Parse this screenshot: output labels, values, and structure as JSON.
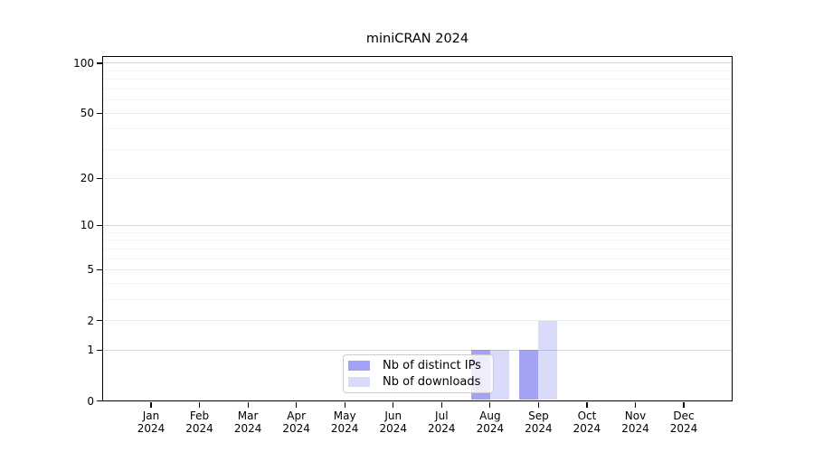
{
  "chart_data": {
    "type": "bar",
    "title": "miniCRAN 2024",
    "categories": [
      "Jan",
      "Feb",
      "Mar",
      "Apr",
      "May",
      "Jun",
      "Jul",
      "Aug",
      "Sep",
      "Oct",
      "Nov",
      "Dec"
    ],
    "x_year_label": "2024",
    "series": [
      {
        "name": "Nb of distinct IPs",
        "values": [
          0,
          0,
          0,
          0,
          0,
          0,
          0,
          1,
          1,
          0,
          0,
          0
        ],
        "color": "rgba(102,102,238,0.60)",
        "swatch_hex": "#a5a5f4"
      },
      {
        "name": "Nb of downloads",
        "values": [
          0,
          0,
          0,
          0,
          0,
          0,
          0,
          1,
          2,
          0,
          0,
          0
        ],
        "color": "rgba(102,102,238,0.24)",
        "swatch_hex": "#dcdcf9"
      }
    ],
    "xlabel": "",
    "ylabel": "",
    "yscale": "log1p",
    "ylim": [
      0,
      110
    ],
    "y_ticks": [
      0,
      1,
      2,
      5,
      10,
      20,
      50,
      100
    ],
    "y_minor_ticks": [
      3,
      4,
      6,
      7,
      8,
      9,
      30,
      40,
      60,
      70,
      80,
      90
    ],
    "grid": true,
    "legend_position": "bottom-center",
    "axis_color": "#000000",
    "major_grid_color": "#d6d6d6",
    "mid_grid_color": "#ebebeb",
    "minor_grid_color": "#f4f4f4"
  }
}
